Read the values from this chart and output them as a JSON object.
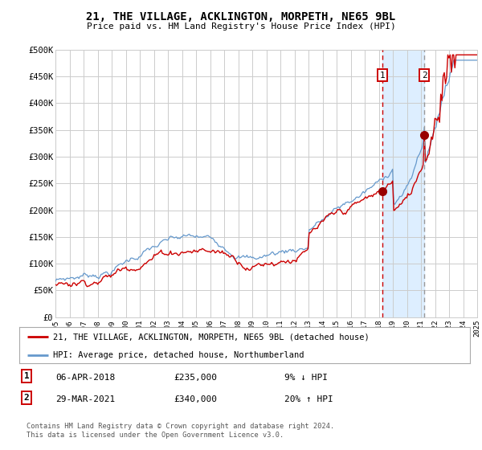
{
  "title": "21, THE VILLAGE, ACKLINGTON, MORPETH, NE65 9BL",
  "subtitle": "Price paid vs. HM Land Registry's House Price Index (HPI)",
  "x_start_year": 1995,
  "x_end_year": 2025,
  "y_min": 0,
  "y_max": 500000,
  "y_ticks": [
    0,
    50000,
    100000,
    150000,
    200000,
    250000,
    300000,
    350000,
    400000,
    450000,
    500000
  ],
  "y_tick_labels": [
    "£0",
    "£50K",
    "£100K",
    "£150K",
    "£200K",
    "£250K",
    "£300K",
    "£350K",
    "£400K",
    "£450K",
    "£500K"
  ],
  "sale1_date": 2018.27,
  "sale1_price": 235000,
  "sale1_label": "06-APR-2018",
  "sale1_hpi_diff": "9% ↓ HPI",
  "sale2_date": 2021.24,
  "sale2_price": 340000,
  "sale2_label": "29-MAR-2021",
  "sale2_hpi_diff": "20% ↑ HPI",
  "line_red_color": "#cc0000",
  "line_blue_color": "#6699cc",
  "marker_color": "#990000",
  "vline_color": "#cc0000",
  "vline2_color": "#999999",
  "shade_color": "#ddeeff",
  "grid_color": "#cccccc",
  "background_color": "#ffffff",
  "legend1_label": "21, THE VILLAGE, ACKLINGTON, MORPETH, NE65 9BL (detached house)",
  "legend2_label": "HPI: Average price, detached house, Northumberland",
  "footer": "Contains HM Land Registry data © Crown copyright and database right 2024.\nThis data is licensed under the Open Government Licence v3.0.",
  "x_tick_years": [
    1995,
    1996,
    1997,
    1998,
    1999,
    2000,
    2001,
    2002,
    2003,
    2004,
    2005,
    2006,
    2007,
    2008,
    2009,
    2010,
    2011,
    2012,
    2013,
    2014,
    2015,
    2016,
    2017,
    2018,
    2019,
    2020,
    2021,
    2022,
    2023,
    2024,
    2025
  ]
}
